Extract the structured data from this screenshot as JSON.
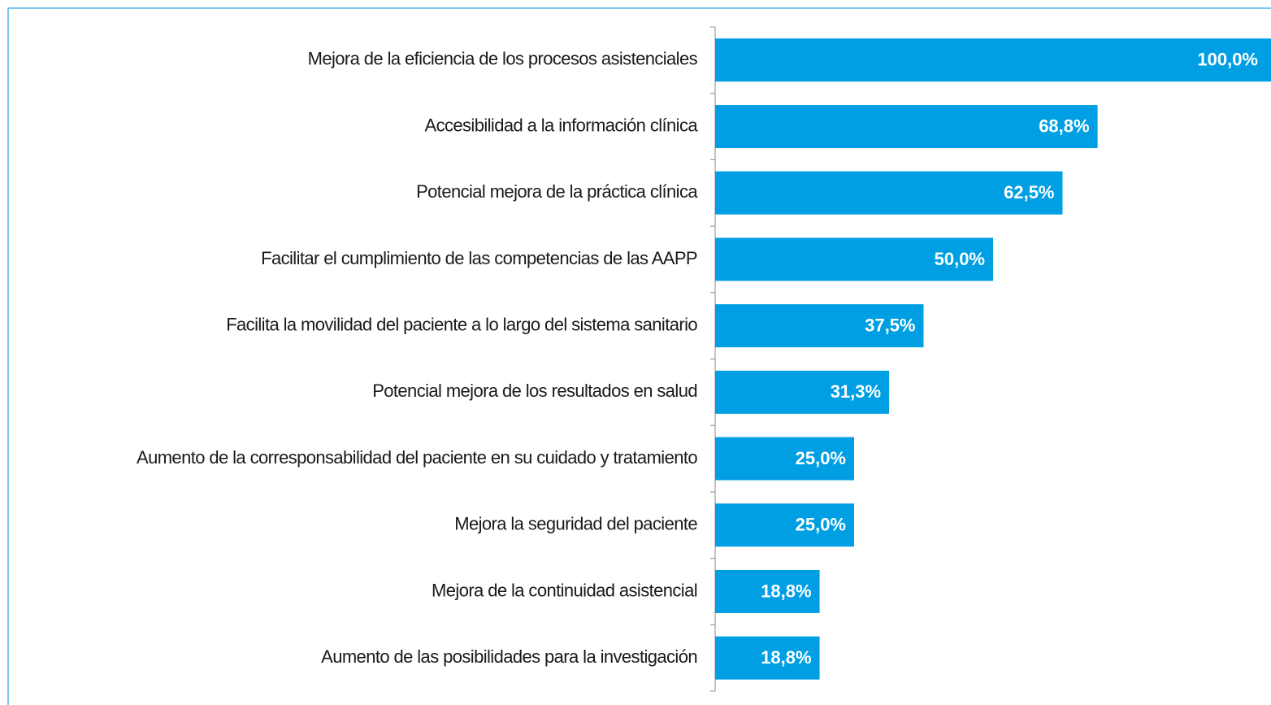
{
  "chart_data": {
    "type": "bar",
    "orientation": "horizontal",
    "categories": [
      "Mejora de la eficiencia de los procesos asistenciales",
      "Accesibilidad a la información clínica",
      "Potencial mejora de la práctica clínica",
      "Facilitar el cumplimiento de las competencias de las AAPP",
      "Facilita la movilidad del paciente a lo largo del sistema sanitario",
      "Potencial mejora de los resultados en salud",
      "Aumento de la corresponsabilidad del paciente en su cuidado y tratamiento",
      "Mejora la seguridad del paciente",
      "Mejora de la continuidad asistencial",
      "Aumento de las posibilidades para la investigación"
    ],
    "values": [
      100,
      68.8,
      62.5,
      50,
      37.5,
      31.3,
      25,
      25,
      18.8,
      18.8
    ],
    "value_labels": [
      "100,0%",
      "68,8%",
      "62,5%",
      "50,0%",
      "37,5%",
      "31,3%",
      "25,0%",
      "25,0%",
      "18,8%",
      "18,8%"
    ],
    "color": "#009fe3",
    "xlim": [
      0,
      100
    ]
  }
}
